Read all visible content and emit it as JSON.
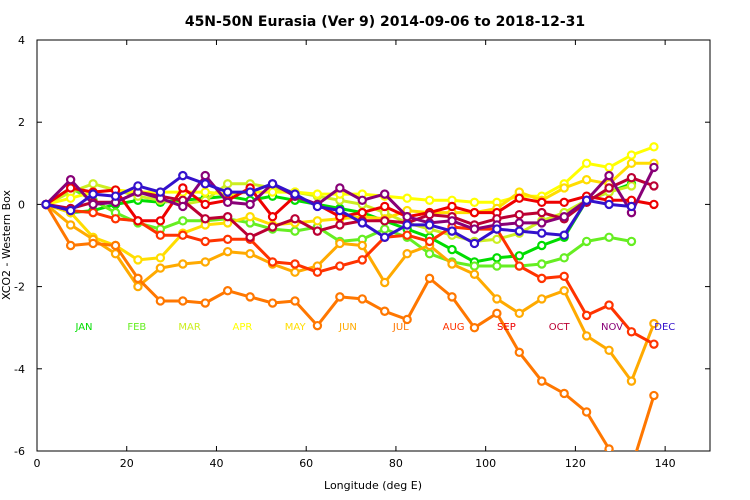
{
  "chart_data": {
    "type": "line",
    "title": "45N-50N Eurasia (Ver 9)   2014-09-06 to 2018-12-31",
    "xlabel": "Longitude (deg E)",
    "ylabel": "XCO2 - Western Box",
    "xlim": [
      0,
      150
    ],
    "ylim": [
      -6,
      4
    ],
    "xticks": [
      0,
      20,
      40,
      60,
      80,
      100,
      120,
      140
    ],
    "yticks": [
      -6,
      -4,
      -2,
      0,
      2,
      4
    ],
    "grid": false,
    "x": [
      2,
      7.5,
      12.5,
      17.5,
      22.5,
      27.5,
      32.5,
      37.5,
      42.5,
      47.5,
      52.5,
      57.5,
      62.5,
      67.5,
      72.5,
      77.5,
      82.5,
      87.5,
      92.5,
      97.5,
      102.5,
      107.5,
      112.5,
      117.5,
      122.5,
      127.5,
      132.5,
      137.5
    ],
    "series": [
      {
        "name": "JAN",
        "color": "#00dd00",
        "values": [
          0,
          -0.2,
          -0.15,
          0,
          0.1,
          0.05,
          0.1,
          0.15,
          0.2,
          0.1,
          0.2,
          0.1,
          0,
          -0.1,
          -0.2,
          -0.4,
          -0.6,
          -0.8,
          -1.1,
          -1.4,
          -1.3,
          -1.25,
          -1.0,
          -0.8,
          0.1,
          0.3,
          0.5,
          null
        ]
      },
      {
        "name": "FEB",
        "color": "#66ee22",
        "values": [
          0,
          0.4,
          0.1,
          -0.2,
          -0.45,
          -0.6,
          -0.4,
          -0.4,
          -0.35,
          -0.45,
          -0.6,
          -0.65,
          -0.55,
          -0.9,
          -0.85,
          -0.6,
          -0.8,
          -1.2,
          -1.4,
          -1.5,
          -1.5,
          -1.5,
          -1.45,
          -1.3,
          -0.9,
          -0.8,
          -0.9,
          null
        ]
      },
      {
        "name": "MAR",
        "color": "#ccee22",
        "values": [
          0,
          0.3,
          0.5,
          0.35,
          0.2,
          0.1,
          0,
          0.1,
          0.5,
          0.5,
          0.4,
          0.3,
          0.2,
          0.1,
          0,
          -0.2,
          -0.45,
          -0.6,
          -0.75,
          -0.9,
          -0.85,
          -0.7,
          -0.4,
          -0.2,
          0.1,
          0.3,
          0.45,
          null
        ]
      },
      {
        "name": "APR",
        "color": "#ffff00",
        "values": [
          0,
          0.15,
          0.3,
          0.35,
          0.3,
          0.3,
          0.3,
          0.3,
          0.25,
          0.3,
          0.3,
          0.3,
          0.25,
          0.25,
          0.25,
          0.2,
          0.15,
          0.1,
          0.1,
          0.05,
          0.05,
          0.2,
          0.2,
          0.5,
          1.0,
          0.9,
          1.2,
          1.4
        ]
      },
      {
        "name": "MAY",
        "color": "#ffdd00",
        "values": [
          0,
          -0.2,
          -0.8,
          -1.0,
          -1.35,
          -1.3,
          -0.7,
          -0.5,
          -0.45,
          -0.3,
          -0.5,
          -0.45,
          -0.4,
          -0.35,
          -0.3,
          -0.35,
          -0.15,
          -0.2,
          -0.2,
          -0.2,
          -0.1,
          0.3,
          0.1,
          0.4,
          0.6,
          0.5,
          1.0,
          1.0
        ]
      },
      {
        "name": "JUN",
        "color": "#ffaa00",
        "values": [
          0,
          -0.5,
          -0.85,
          -1.2,
          -2.0,
          -1.55,
          -1.45,
          -1.4,
          -1.15,
          -1.2,
          -1.45,
          -1.65,
          -1.5,
          -0.95,
          -1.0,
          -1.9,
          -1.2,
          -1.0,
          -1.45,
          -1.7,
          -2.3,
          -2.65,
          -2.3,
          -2.1,
          -3.2,
          -3.55,
          -4.3,
          -2.9
        ]
      },
      {
        "name": "JUL",
        "color": "#ff7700",
        "values": [
          0,
          -1.0,
          -0.95,
          -1.0,
          -1.8,
          -2.35,
          -2.35,
          -2.4,
          -2.1,
          -2.25,
          -2.4,
          -2.35,
          -2.95,
          -2.25,
          -2.3,
          -2.6,
          -2.8,
          -1.8,
          -2.25,
          -3.0,
          -2.65,
          -3.6,
          -4.3,
          -4.6,
          -5.05,
          -5.95,
          -6.4,
          -4.65
        ]
      },
      {
        "name": "AUG",
        "color": "#ff3300",
        "values": [
          0,
          -0.15,
          -0.2,
          -0.35,
          -0.4,
          -0.75,
          -0.75,
          -0.9,
          -0.85,
          -0.85,
          -1.4,
          -1.45,
          -1.65,
          -1.5,
          -1.35,
          -0.8,
          -0.75,
          -0.9,
          -0.55,
          -0.6,
          -0.6,
          -1.5,
          -1.8,
          -1.75,
          -2.7,
          -2.45,
          -3.1,
          -3.4
        ]
      },
      {
        "name": "SEP",
        "color": "#ee0000",
        "values": [
          0,
          0.4,
          0.3,
          0.35,
          -0.4,
          -0.4,
          0.4,
          0,
          0.1,
          0.4,
          -0.3,
          0.2,
          0,
          -0.3,
          -0.2,
          -0.05,
          -0.3,
          -0.2,
          -0.05,
          -0.2,
          -0.2,
          0.15,
          0.05,
          0.05,
          0.2,
          0.1,
          0.1,
          0
        ]
      },
      {
        "name": "OCT",
        "color": "#bb0033",
        "values": [
          0,
          -0.1,
          0.05,
          0.05,
          0.3,
          0.2,
          0.1,
          -0.35,
          -0.3,
          -0.8,
          -0.55,
          -0.35,
          -0.65,
          -0.5,
          -0.4,
          -0.4,
          -0.45,
          -0.25,
          -0.3,
          -0.5,
          -0.35,
          -0.25,
          -0.2,
          -0.35,
          0.05,
          0.4,
          0.65,
          0.45
        ]
      },
      {
        "name": "NOV",
        "color": "#880077",
        "values": [
          0,
          0.6,
          0,
          0.05,
          0.3,
          0.15,
          -0.05,
          0.7,
          0.05,
          0,
          0.5,
          0.2,
          0,
          0.4,
          0.1,
          0.25,
          -0.3,
          -0.45,
          -0.4,
          -0.6,
          -0.5,
          -0.45,
          -0.45,
          -0.3,
          0.1,
          0.7,
          -0.2,
          0.9
        ]
      },
      {
        "name": "DEC",
        "color": "#3311cc",
        "values": [
          0,
          -0.15,
          0.25,
          0.2,
          0.45,
          0.3,
          0.7,
          0.5,
          0.3,
          0.3,
          0.5,
          0.25,
          -0.05,
          -0.15,
          -0.45,
          -0.8,
          -0.5,
          -0.5,
          -0.65,
          -0.95,
          -0.6,
          -0.65,
          -0.7,
          -0.75,
          0.1,
          0,
          -0.05,
          null
        ]
      }
    ]
  }
}
